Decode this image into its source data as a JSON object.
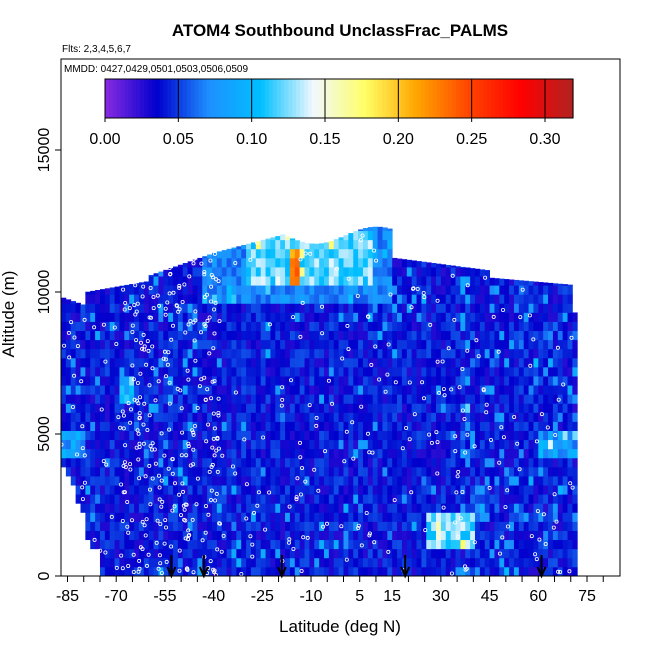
{
  "chart_data": {
    "type": "heatmap",
    "title": "ATOM4 Southbound UnclassFrac_PALMS",
    "flights_label": "Flts: 2,3,4,5,6,7",
    "dates_label": "MMDD: 0427,0429,0501,0503,0506,0509",
    "xlabel": "Latitude (deg N)",
    "ylabel": "Altitude (m)",
    "xlim": [
      -87,
      82
    ],
    "ylim": [
      0,
      17500
    ],
    "x_ticks": [
      -85,
      -70,
      -55,
      -40,
      -25,
      -10,
      5,
      15,
      30,
      45,
      60,
      75
    ],
    "x_tick_labels": [
      "-85",
      "-70",
      "-55",
      "-40",
      "-25",
      "-10",
      "5",
      "15",
      "30",
      "45",
      "60",
      "75"
    ],
    "y_ticks": [
      0,
      5000,
      10000,
      15000
    ],
    "y_tick_labels": [
      "0",
      "5000",
      "10000",
      "15000"
    ],
    "colorbar": {
      "min": 0.0,
      "max": 0.32,
      "ticks": [
        0.0,
        0.05,
        0.1,
        0.15,
        0.2,
        0.25,
        0.3
      ],
      "tick_labels": [
        "0.00",
        "0.05",
        "0.10",
        "0.15",
        "0.20",
        "0.25",
        "0.30"
      ],
      "colors": [
        "#8A2BE2",
        "#0000CD",
        "#1E90FF",
        "#00BFFF",
        "#F0F8FF",
        "#FFFF66",
        "#FFA500",
        "#FF4500",
        "#FF0000",
        "#B22222"
      ]
    },
    "profile_arrows_lat": [
      -53,
      -43,
      -19,
      19,
      61
    ],
    "data_extent": {
      "lat_min": -87,
      "lat_max": 72,
      "alt_min": 0,
      "alt_max": 12500
    },
    "notable_regions": [
      {
        "lat_range": [
          -30,
          8
        ],
        "alt_range": [
          10000,
          12000
        ],
        "value": 0.12
      },
      {
        "lat_range": [
          -17,
          -14
        ],
        "alt_range": [
          10200,
          11200
        ],
        "value": 0.22
      },
      {
        "lat_range": [
          -70,
          -65
        ],
        "alt_range": [
          6000,
          7000
        ],
        "value": 0.1
      },
      {
        "lat_range": [
          -88,
          -80
        ],
        "alt_range": [
          4000,
          5000
        ],
        "value": 0.08
      },
      {
        "lat_range": [
          25,
          40
        ],
        "alt_range": [
          800,
          2000
        ],
        "value": 0.12
      },
      {
        "lat_range": [
          60,
          72
        ],
        "alt_range": [
          4000,
          5000
        ],
        "value": 0.08
      }
    ]
  }
}
